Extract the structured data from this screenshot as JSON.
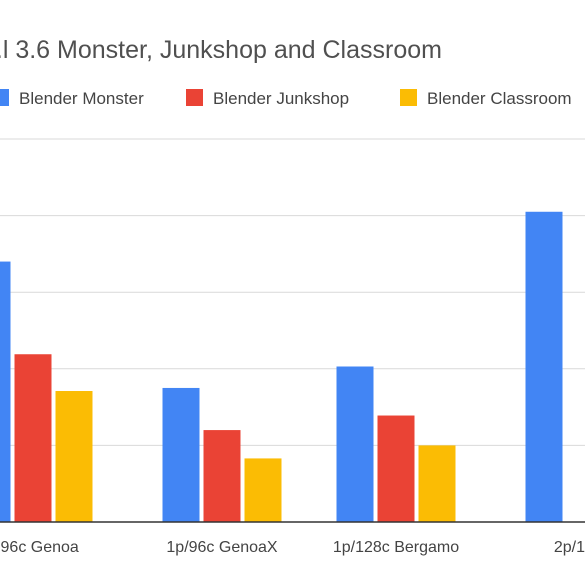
{
  "chart_data": {
    "type": "bar",
    "title": "...l 3.6 Monster, Junkshop and Classroom",
    "categories": [
      "...96c Genoa",
      "1p/96c GenoaX",
      "1p/128c Bergamo",
      "2p/128..."
    ],
    "series": [
      {
        "name": "Blender Monster",
        "color": "#4285F4",
        "values": [
          340,
          175,
          203,
          405
        ]
      },
      {
        "name": "Blender Junkshop",
        "color": "#EA4335",
        "values": [
          219,
          120,
          139,
          null
        ]
      },
      {
        "name": "Blender Classroom",
        "color": "#FBBC04",
        "values": [
          171,
          83,
          100,
          null
        ]
      }
    ],
    "xlabel": "",
    "ylabel": "",
    "ylim": [
      0,
      500
    ],
    "grid": true,
    "legend_position": "top"
  }
}
